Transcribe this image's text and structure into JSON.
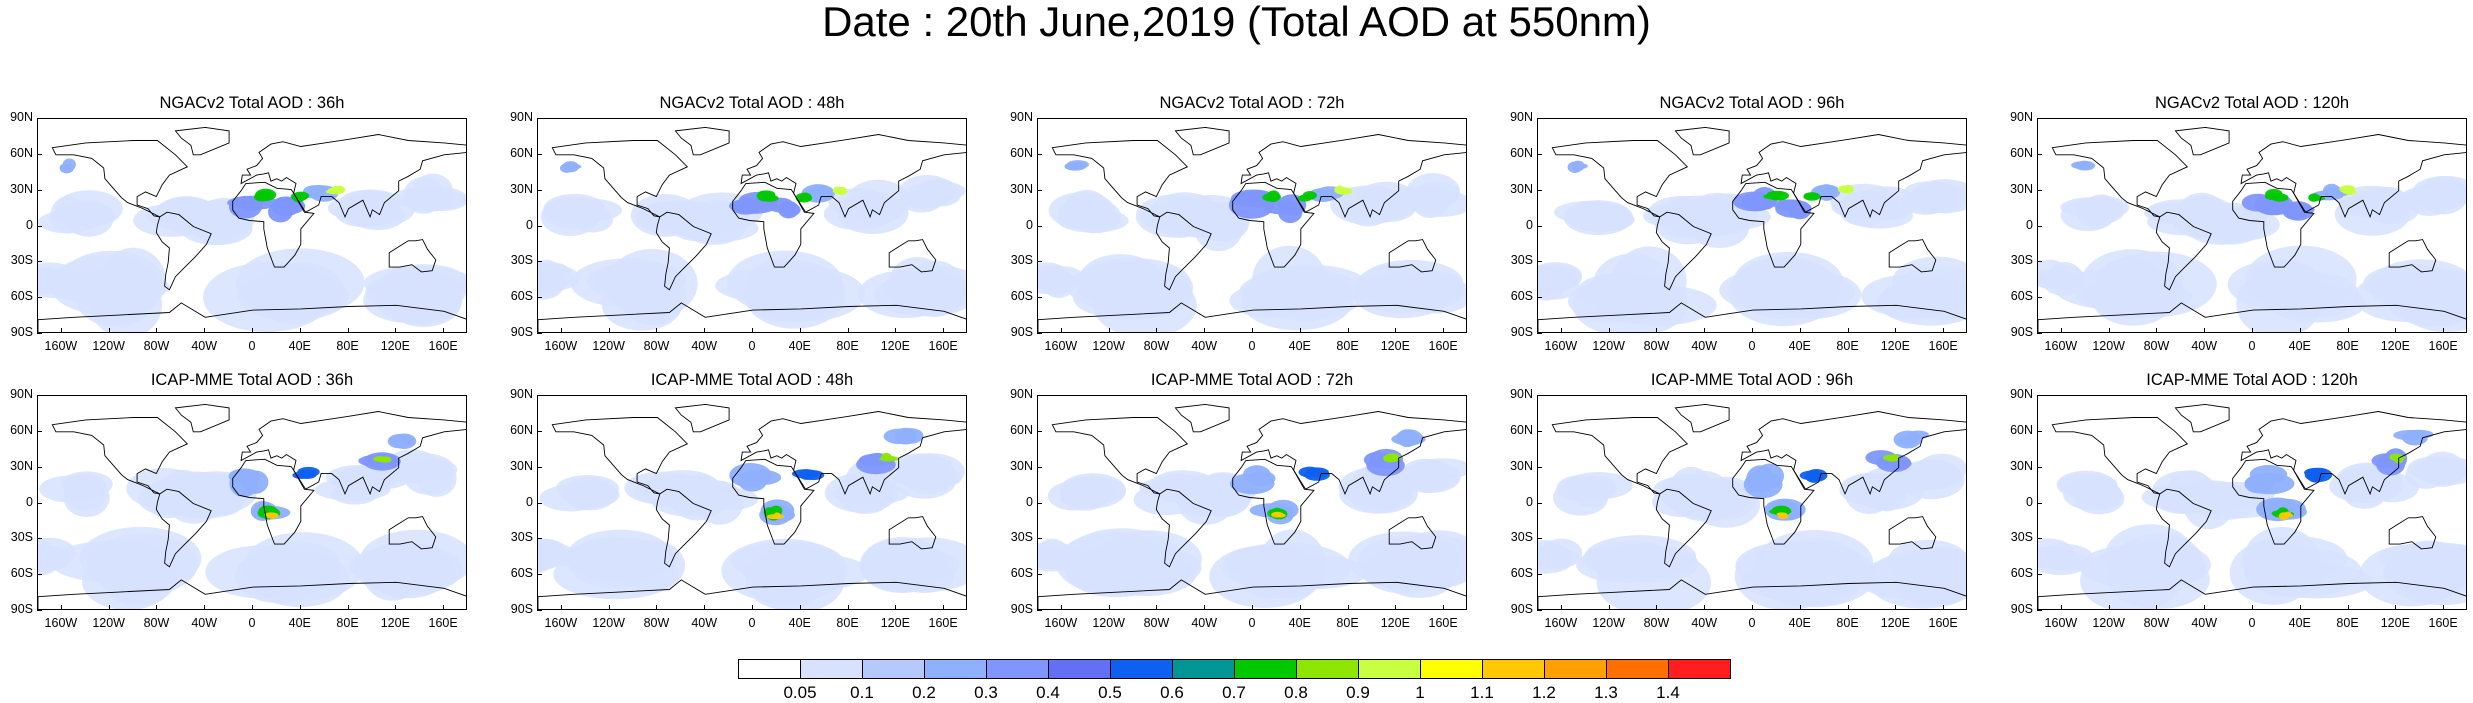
{
  "title": "Date : 20th June,2019 (Total AOD at 550nm)",
  "panels": [
    {
      "title": "NGACv2 Total AOD : 36h"
    },
    {
      "title": "NGACv2 Total AOD : 48h"
    },
    {
      "title": "NGACv2 Total AOD : 72h"
    },
    {
      "title": "NGACv2 Total AOD : 96h"
    },
    {
      "title": "NGACv2 Total AOD : 120h"
    },
    {
      "title": "ICAP-MME Total AOD : 36h"
    },
    {
      "title": "ICAP-MME Total AOD : 48h"
    },
    {
      "title": "ICAP-MME Total AOD : 72h"
    },
    {
      "title": "ICAP-MME Total AOD : 96h"
    },
    {
      "title": "ICAP-MME Total AOD : 120h"
    }
  ],
  "lat_labels": [
    "90N",
    "60N",
    "30N",
    "0",
    "30S",
    "60S",
    "90S"
  ],
  "lon_labels": [
    "160W",
    "120W",
    "80W",
    "40W",
    "0",
    "40E",
    "80E",
    "120E",
    "160E"
  ],
  "colorbar": {
    "labels": [
      "0.05",
      "0.1",
      "0.2",
      "0.3",
      "0.4",
      "0.5",
      "0.6",
      "0.7",
      "0.8",
      "0.9",
      "1",
      "1.1",
      "1.2",
      "1.3",
      "1.4"
    ],
    "colors": [
      "#ffffff",
      "#d6e2ff",
      "#b5c9ff",
      "#8fb0ff",
      "#7f96ff",
      "#6370f5",
      "#0e60f0",
      "#009696",
      "#00c800",
      "#8ee600",
      "#c8ff40",
      "#ffff00",
      "#ffc800",
      "#ff9f00",
      "#ff7000",
      "#ff1e1e"
    ]
  }
}
